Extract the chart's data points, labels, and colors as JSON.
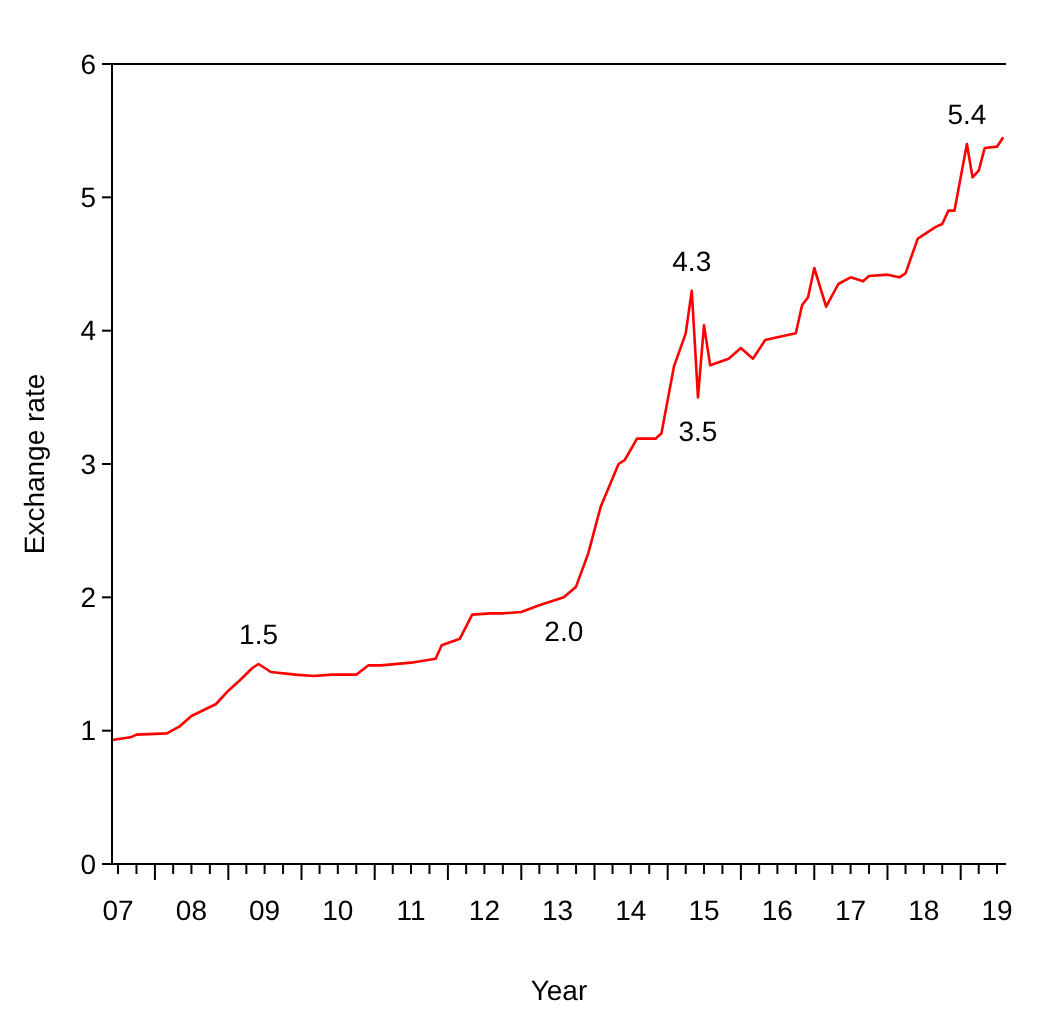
{
  "chart_data": {
    "type": "line",
    "xlabel": "Year",
    "ylabel": "Exchange rate",
    "xlim": [
      "2007-06",
      "2019-08-15"
    ],
    "ylim": [
      0,
      6
    ],
    "yticks": [
      0,
      1,
      2,
      3,
      4,
      5,
      6
    ],
    "xticks": [
      {
        "value": "2007-07",
        "label": "07"
      },
      {
        "value": "2007-10",
        "label": null
      },
      {
        "value": "2008",
        "label": null
      },
      {
        "value": "2008-04",
        "label": null
      },
      {
        "value": "2008-07",
        "label": "08"
      },
      {
        "value": "2008-10",
        "label": null
      },
      {
        "value": "2009",
        "label": null
      },
      {
        "value": "2009-04",
        "label": null
      },
      {
        "value": "2009-07",
        "label": "09"
      },
      {
        "value": "2009-10",
        "label": null
      },
      {
        "value": "2010",
        "label": null
      },
      {
        "value": "2010-04",
        "label": null
      },
      {
        "value": "2010-07",
        "label": "10"
      },
      {
        "value": "2010-10",
        "label": null
      },
      {
        "value": "2011",
        "label": null
      },
      {
        "value": "2011-04",
        "label": null
      },
      {
        "value": "2011-07",
        "label": "11"
      },
      {
        "value": "2011-10",
        "label": null
      },
      {
        "value": "2012",
        "label": null
      },
      {
        "value": "2012-04",
        "label": null
      },
      {
        "value": "2012-07",
        "label": "12"
      },
      {
        "value": "2012-10",
        "label": null
      },
      {
        "value": "2013",
        "label": null
      },
      {
        "value": "2013-04",
        "label": null
      },
      {
        "value": "2013-07",
        "label": "13"
      },
      {
        "value": "2013-10",
        "label": null
      },
      {
        "value": "2014",
        "label": null
      },
      {
        "value": "2014-04",
        "label": null
      },
      {
        "value": "2014-07",
        "label": "14"
      },
      {
        "value": "2014-10",
        "label": null
      },
      {
        "value": "2015",
        "label": null
      },
      {
        "value": "2015-04",
        "label": null
      },
      {
        "value": "2015-07",
        "label": "15"
      },
      {
        "value": "2015-10",
        "label": null
      },
      {
        "value": "2016",
        "label": null
      },
      {
        "value": "2016-04",
        "label": null
      },
      {
        "value": "2016-07",
        "label": "16"
      },
      {
        "value": "2016-10",
        "label": null
      },
      {
        "value": "2017",
        "label": null
      },
      {
        "value": "2017-04",
        "label": null
      },
      {
        "value": "2017-07",
        "label": "17"
      },
      {
        "value": "2017-10",
        "label": null
      },
      {
        "value": "2018",
        "label": null
      },
      {
        "value": "2018-04",
        "label": null
      },
      {
        "value": "2018-07",
        "label": "18"
      },
      {
        "value": "2018-10",
        "label": null
      },
      {
        "value": "2019",
        "label": null
      },
      {
        "value": "2019-04",
        "label": null
      },
      {
        "value": "2019-07",
        "label": "19"
      }
    ],
    "grid": false,
    "marker": "none",
    "line_style": "solid",
    "series": [
      {
        "color": "#ff0000",
        "x": [
          "2007-06",
          "2007-09",
          "2007-10",
          "2008-03",
          "2008-05",
          "2008-07",
          "2008-11",
          "2009-01",
          "2009-03",
          "2009-05",
          "2009-06",
          "2009-08",
          "2009-12",
          "2010-03",
          "2010-06",
          "2010-10",
          "2010-12",
          "2011-02",
          "2011-07",
          "2011-11",
          "2011-12",
          "2012-03",
          "2012-05",
          "2012-08",
          "2012-10",
          "2013-01",
          "2013-04",
          "2013-08",
          "2013-10",
          "2013-12",
          "2014-02",
          "2014-05",
          "2014-06",
          "2014-08",
          "2014-11",
          "2014-12",
          "2015-02",
          "2015-04",
          "2015-05",
          "2015-06",
          "2015-07",
          "2015-08",
          "2015-11",
          "2016-01",
          "2016-03",
          "2016-05",
          "2016-07",
          "2016-10",
          "2016-11",
          "2016-12",
          "2017-01",
          "2017-03",
          "2017-05",
          "2017-07",
          "2017-09",
          "2017-10",
          "2018-01",
          "2018-03",
          "2018-04",
          "2018-06",
          "2018-09",
          "2018-10",
          "2018-11",
          "2018-12",
          "2019-02",
          "2019-03",
          "2019-04",
          "2019-05",
          "2019-07",
          "2019-08"
        ],
        "values": [
          0.93,
          0.95,
          0.97,
          0.98,
          1.03,
          1.11,
          1.2,
          1.3,
          1.38,
          1.47,
          1.5,
          1.44,
          1.42,
          1.41,
          1.42,
          1.42,
          1.49,
          1.49,
          1.51,
          1.54,
          1.64,
          1.69,
          1.87,
          1.88,
          1.88,
          1.89,
          1.94,
          2.0,
          2.08,
          2.33,
          2.68,
          3.0,
          3.03,
          3.19,
          3.19,
          3.23,
          3.73,
          3.98,
          4.3,
          3.5,
          4.04,
          3.74,
          3.79,
          3.87,
          3.79,
          3.93,
          3.95,
          3.98,
          4.19,
          4.25,
          4.47,
          4.18,
          4.35,
          4.4,
          4.37,
          4.41,
          4.42,
          4.4,
          4.43,
          4.69,
          4.78,
          4.8,
          4.9,
          4.9,
          5.4,
          5.15,
          5.2,
          5.37,
          5.38,
          5.45
        ]
      }
    ],
    "annotations": [
      {
        "text": "1.5",
        "x": "2009-06",
        "y": 1.5
      },
      {
        "text": "2.0",
        "x": "2013-08",
        "y": 2.0
      },
      {
        "text": "4.3",
        "x": "2015-05",
        "y": 4.3
      },
      {
        "text": "3.5",
        "x": "2015-06",
        "y": 3.5
      },
      {
        "text": "5.4",
        "x": "2019-02",
        "y": 5.4
      }
    ]
  }
}
